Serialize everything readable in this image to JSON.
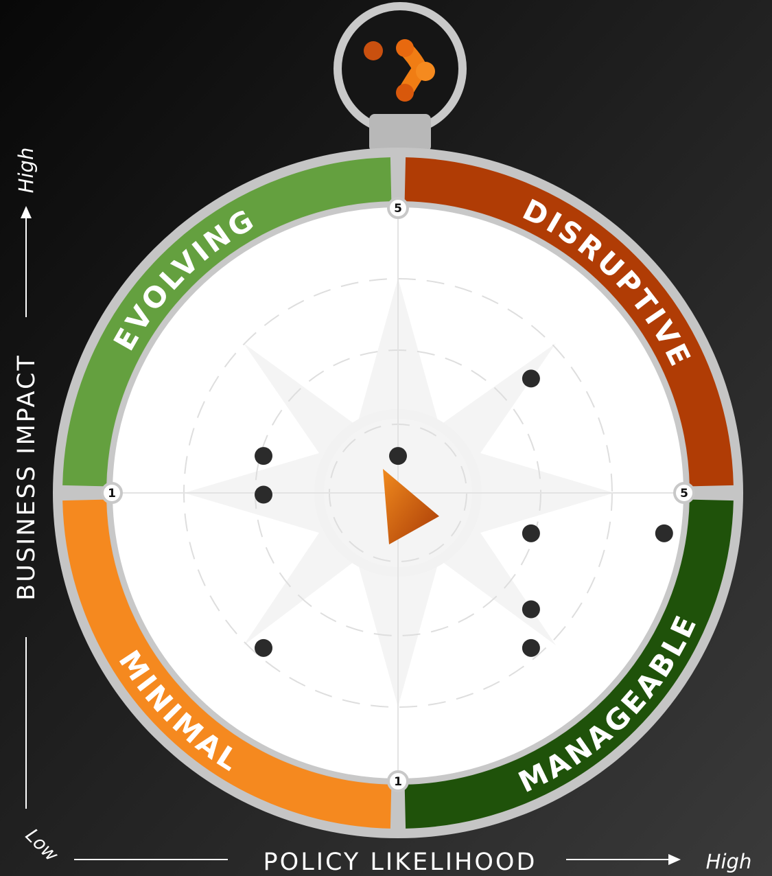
{
  "chart_data": {
    "type": "scatter",
    "x_label": "POLICY LIKELIHOOD",
    "x_low_label": "Low",
    "x_high_label": "High",
    "y_label": "BUSINESS IMPACT",
    "y_high_label": "High",
    "quadrants": [
      {
        "label": "EVOLVING",
        "color": "#64a03f"
      },
      {
        "label": "DISRUPTIVE",
        "color": "#b03c05"
      },
      {
        "label": "MINIMAL",
        "color": "#f5891f"
      },
      {
        "label": "MANAGEABLE",
        "color": "#1f520a"
      }
    ],
    "x": [
      3.93,
      2.06,
      3,
      2.06,
      3.93,
      4.86,
      3.93,
      2.06,
      3.93
    ],
    "values": [
      3.81,
      3.27,
      3.27,
      3.0,
      2.73,
      2.73,
      2.2,
      1.93,
      1.93
    ],
    "color": "#2b2b2b",
    "xlim": [
      1,
      5
    ],
    "ylim": [
      1,
      5
    ],
    "xticks": [
      1,
      5
    ],
    "yticks": [
      1,
      5
    ]
  }
}
